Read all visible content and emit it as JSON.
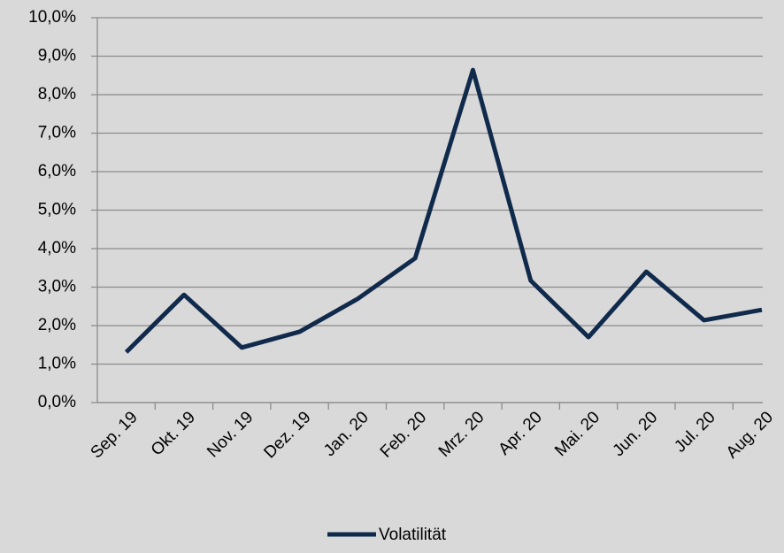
{
  "chart_data": {
    "type": "line",
    "categories": [
      "Sep. 19",
      "Okt. 19",
      "Nov. 19",
      "Dez. 19",
      "Jan. 20",
      "Feb. 20",
      "Mrz. 20",
      "Apr. 20",
      "Mai. 20",
      "Jun. 20",
      "Jul. 20",
      "Aug. 20"
    ],
    "series": [
      {
        "name": "Volatilität",
        "color": "#102a4c",
        "values": [
          1.31,
          2.8,
          1.43,
          1.84,
          2.69,
          3.75,
          8.64,
          3.17,
          1.7,
          3.4,
          2.14,
          2.41
        ]
      }
    ],
    "ylim": [
      0,
      10
    ],
    "yticks": [
      {
        "value": 0,
        "label": "0,0%"
      },
      {
        "value": 1,
        "label": "1,0%"
      },
      {
        "value": 2,
        "label": "2,0%"
      },
      {
        "value": 3,
        "label": "3,0%"
      },
      {
        "value": 4,
        "label": "4,0%"
      },
      {
        "value": 5,
        "label": "5,0%"
      },
      {
        "value": 6,
        "label": "6,0%"
      },
      {
        "value": 7,
        "label": "7,0%"
      },
      {
        "value": 8,
        "label": "8,0%"
      },
      {
        "value": 9,
        "label": "9,0%"
      },
      {
        "value": 10,
        "label": "10,0%"
      }
    ],
    "grid": true,
    "legend": "bottom"
  }
}
